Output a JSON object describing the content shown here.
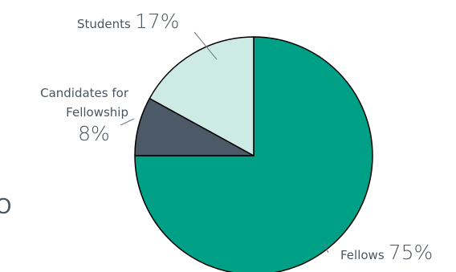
{
  "chart_data": {
    "type": "pie",
    "slices": [
      {
        "name": "Fellows",
        "value": 75,
        "label": "Fellows",
        "pct_label": "75%",
        "color": "#00a086"
      },
      {
        "name": "Candidates for Fellowship",
        "value": 8,
        "label": "Candidates for Fellowship",
        "label_line1": "Candidates for",
        "label_line2": "Fellowship",
        "pct_label": "8%",
        "color": "#4b5a66"
      },
      {
        "name": "Students",
        "value": 17,
        "label": "Students",
        "pct_label": "17%",
        "color": "#cdeae4"
      }
    ],
    "edge_color": "#000000",
    "label_color": "#4a5660",
    "partial_glyph": "O"
  }
}
